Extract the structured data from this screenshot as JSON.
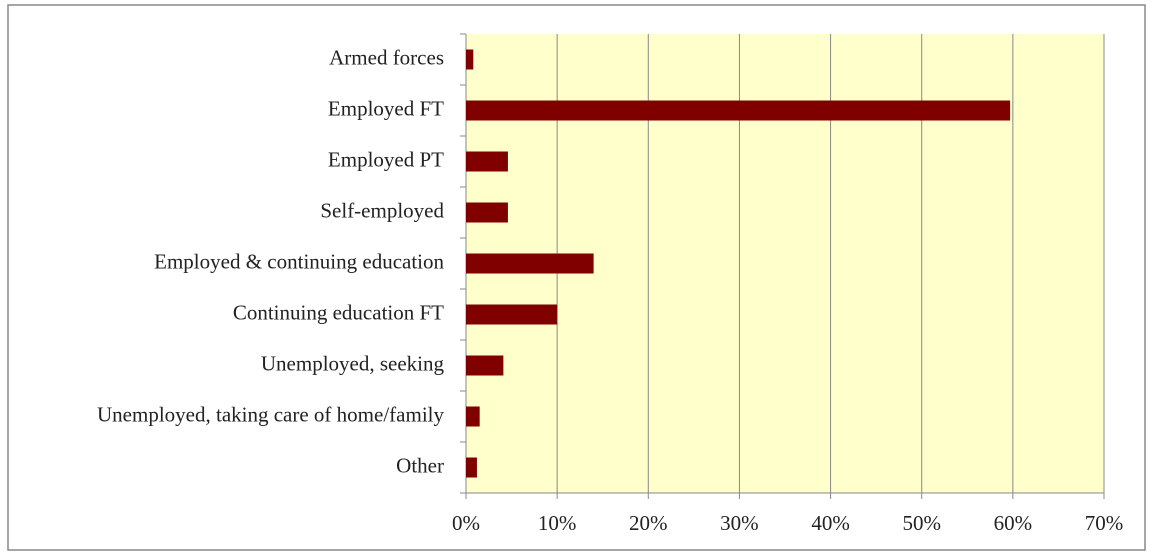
{
  "chart_data": {
    "type": "bar",
    "orientation": "horizontal",
    "categories": [
      "Armed forces",
      "Employed FT",
      "Employed PT",
      "Self-employed",
      "Employed & continuing education",
      "Continuing education FT",
      "Unemployed, seeking",
      "Unemployed, taking care of home/family",
      "Other"
    ],
    "values": [
      0.8,
      59.7,
      4.6,
      4.6,
      14.0,
      10.0,
      4.1,
      1.5,
      1.2
    ],
    "color": "#800000",
    "xlim": [
      0,
      70
    ],
    "xticks": [
      {
        "value": 0,
        "label": "0%"
      },
      {
        "value": 10,
        "label": "10%"
      },
      {
        "value": 20,
        "label": "20%"
      },
      {
        "value": 30,
        "label": "30%"
      },
      {
        "value": 40,
        "label": "40%"
      },
      {
        "value": 50,
        "label": "50%"
      },
      {
        "value": 60,
        "label": "60%"
      },
      {
        "value": 70,
        "label": "70%"
      }
    ],
    "grid": true
  }
}
